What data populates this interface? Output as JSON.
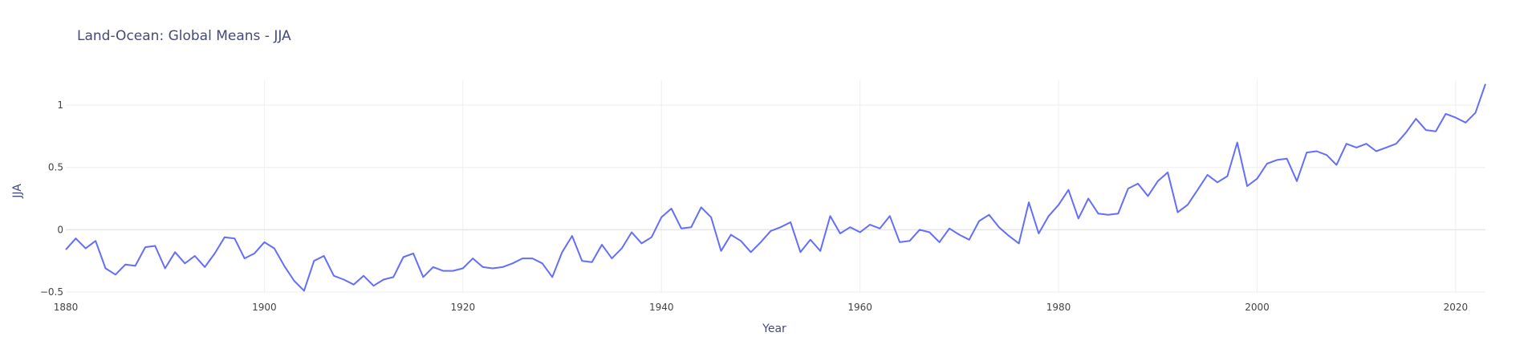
{
  "chart_data": {
    "type": "line",
    "title": "Land-Ocean: Global Means - JJA",
    "xlabel": "Year",
    "ylabel": "JJA",
    "xlim": [
      1880,
      2023
    ],
    "ylim": [
      -0.5,
      1.2
    ],
    "x_ticks": [
      1880,
      1900,
      1920,
      1940,
      1960,
      1980,
      2000,
      2020
    ],
    "y_ticks": [
      -0.5,
      0,
      0.5,
      1
    ],
    "y_tick_labels": [
      "−0.5",
      "0",
      "0.5",
      "1"
    ],
    "grid": true,
    "color": "#636efa",
    "series": [
      {
        "x": [
          1880,
          1881,
          1882,
          1883,
          1884,
          1885,
          1886,
          1887,
          1888,
          1889,
          1890,
          1891,
          1892,
          1893,
          1894,
          1895,
          1896,
          1897,
          1898,
          1899,
          1900,
          1901,
          1902,
          1903,
          1904,
          1905,
          1906,
          1907,
          1908,
          1909,
          1910,
          1911,
          1912,
          1913,
          1914,
          1915,
          1916,
          1917,
          1918,
          1919,
          1920,
          1921,
          1922,
          1923,
          1924,
          1925,
          1926,
          1927,
          1928,
          1929,
          1930,
          1931,
          1932,
          1933,
          1934,
          1935,
          1936,
          1937,
          1938,
          1939,
          1940,
          1941,
          1942,
          1943,
          1944,
          1945,
          1946,
          1947,
          1948,
          1949,
          1950,
          1951,
          1952,
          1953,
          1954,
          1955,
          1956,
          1957,
          1958,
          1959,
          1960,
          1961,
          1962,
          1963,
          1964,
          1965,
          1966,
          1967,
          1968,
          1969,
          1970,
          1971,
          1972,
          1973,
          1974,
          1975,
          1976,
          1977,
          1978,
          1979,
          1980,
          1981,
          1982,
          1983,
          1984,
          1985,
          1986,
          1987,
          1988,
          1989,
          1990,
          1991,
          1992,
          1993,
          1994,
          1995,
          1996,
          1997,
          1998,
          1999,
          2000,
          2001,
          2002,
          2003,
          2004,
          2005,
          2006,
          2007,
          2008,
          2009,
          2010,
          2011,
          2012,
          2013,
          2014,
          2015,
          2016,
          2017,
          2018,
          2019,
          2020,
          2021,
          2022,
          2023
        ],
        "values": [
          -0.16,
          -0.07,
          -0.15,
          -0.09,
          -0.31,
          -0.36,
          -0.28,
          -0.29,
          -0.14,
          -0.13,
          -0.31,
          -0.18,
          -0.27,
          -0.21,
          -0.3,
          -0.19,
          -0.06,
          -0.07,
          -0.23,
          -0.19,
          -0.1,
          -0.15,
          -0.29,
          -0.41,
          -0.49,
          -0.25,
          -0.21,
          -0.37,
          -0.4,
          -0.44,
          -0.37,
          -0.45,
          -0.4,
          -0.38,
          -0.22,
          -0.19,
          -0.38,
          -0.3,
          -0.33,
          -0.33,
          -0.31,
          -0.23,
          -0.3,
          -0.31,
          -0.3,
          -0.27,
          -0.23,
          -0.23,
          -0.27,
          -0.38,
          -0.18,
          -0.05,
          -0.25,
          -0.26,
          -0.12,
          -0.23,
          -0.15,
          -0.02,
          -0.11,
          -0.06,
          0.1,
          0.17,
          0.01,
          0.02,
          0.18,
          0.1,
          -0.17,
          -0.04,
          -0.09,
          -0.18,
          -0.1,
          -0.01,
          0.02,
          0.06,
          -0.18,
          -0.08,
          -0.17,
          0.11,
          -0.03,
          0.02,
          -0.02,
          0.04,
          0.01,
          0.11,
          -0.1,
          -0.09,
          0.0,
          -0.02,
          -0.1,
          0.01,
          -0.04,
          -0.08,
          0.07,
          0.12,
          0.02,
          -0.05,
          -0.11,
          0.22,
          -0.03,
          0.11,
          0.2,
          0.32,
          0.09,
          0.25,
          0.13,
          0.12,
          0.13,
          0.33,
          0.37,
          0.27,
          0.39,
          0.46,
          0.14,
          0.2,
          0.32,
          0.44,
          0.38,
          0.43,
          0.7,
          0.35,
          0.41,
          0.53,
          0.56,
          0.57,
          0.39,
          0.62,
          0.63,
          0.6,
          0.52,
          0.69,
          0.66,
          0.69,
          0.63,
          0.66,
          0.69,
          0.78,
          0.89,
          0.8,
          0.79,
          0.93,
          0.9,
          0.86,
          0.94,
          1.17
        ]
      }
    ]
  }
}
